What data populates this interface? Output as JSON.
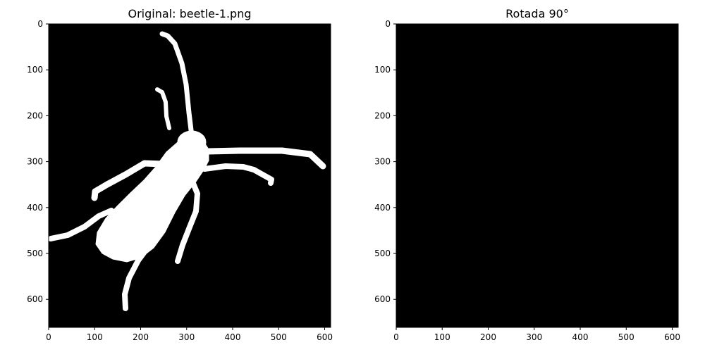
{
  "chart_data": [
    {
      "type": "heatmap",
      "title": "Original: beetle-1.png",
      "image": "binary silhouette of a beetle (white on black)",
      "xlim": [
        0,
        613
      ],
      "ylim": [
        661,
        0
      ],
      "xticks": [
        0,
        100,
        200,
        300,
        400,
        500,
        600
      ],
      "yticks": [
        0,
        100,
        200,
        300,
        400,
        500,
        600
      ],
      "colors": {
        "background": "#000000",
        "foreground": "#ffffff"
      }
    },
    {
      "type": "heatmap",
      "title": "Rotada 90°",
      "image": "all-black image",
      "xlim": [
        0,
        613
      ],
      "ylim": [
        661,
        0
      ],
      "xticks": [
        0,
        100,
        200,
        300,
        400,
        500,
        600
      ],
      "yticks": [
        0,
        100,
        200,
        300,
        400,
        500,
        600
      ],
      "colors": {
        "background": "#000000"
      }
    }
  ]
}
